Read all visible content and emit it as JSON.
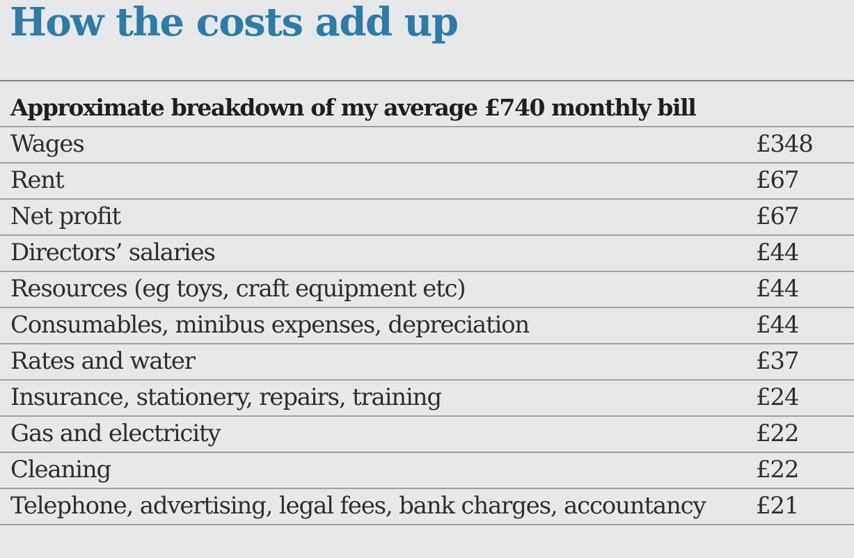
{
  "chart_data": {
    "type": "table",
    "title": "How the costs add up",
    "subtitle": "Approximate breakdown of my average £740 monthly bill",
    "rows": [
      {
        "label": "Wages",
        "value": "£348"
      },
      {
        "label": "Rent",
        "value": "£67"
      },
      {
        "label": "Net profit",
        "value": "£67"
      },
      {
        "label": "Directors’ salaries",
        "value": "£44"
      },
      {
        "label": "Resources (eg toys, craft equipment etc)",
        "value": "£44"
      },
      {
        "label": "Consumables, minibus expenses, depreciation",
        "value": "£44"
      },
      {
        "label": "Rates and water",
        "value": "£37"
      },
      {
        "label": "Insurance, stationery, repairs, training",
        "value": "£24"
      },
      {
        "label": "Gas and electricity",
        "value": "£22"
      },
      {
        "label": "Cleaning",
        "value": "£22"
      },
      {
        "label": "Telephone, advertising, legal fees, bank charges, accountancy",
        "value": "£21"
      }
    ]
  }
}
